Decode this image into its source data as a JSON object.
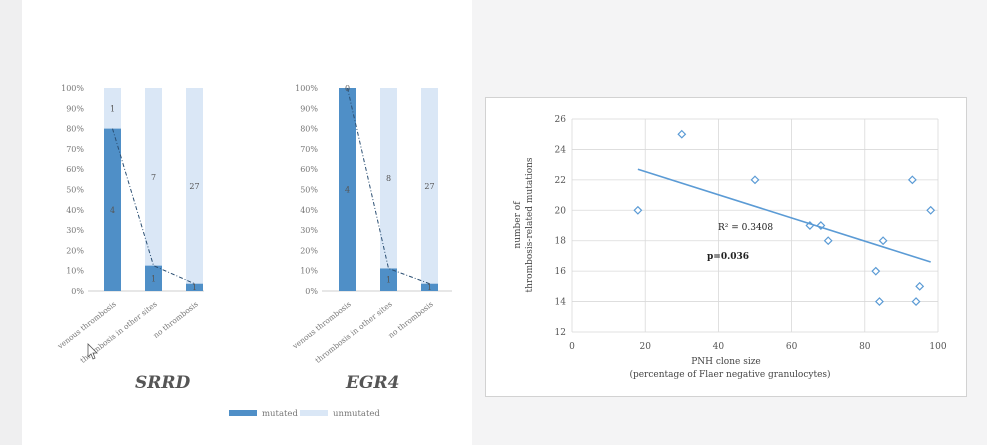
{
  "chart_data": [
    {
      "type": "bar",
      "stacked": true,
      "percent": true,
      "title": "SRRD",
      "categories": [
        "venous thrombosis",
        "thrombosis in other sites",
        "no thrombosis"
      ],
      "series": [
        {
          "name": "mutated",
          "color": "#4f8fc7",
          "values": [
            80,
            12.5,
            3.6
          ],
          "labels": [
            "4",
            "1",
            "1"
          ]
        },
        {
          "name": "unmutated",
          "color": "#dae7f6",
          "values": [
            20,
            87.5,
            96.4
          ],
          "labels": [
            "1",
            "7",
            "27"
          ]
        }
      ],
      "ylim": [
        0,
        100
      ],
      "yticks": [
        "0%",
        "10%",
        "20%",
        "30%",
        "40%",
        "50%",
        "60%",
        "70%",
        "80%",
        "90%",
        "100%"
      ],
      "trend": "dashed line through mutated percentages"
    },
    {
      "type": "bar",
      "stacked": true,
      "percent": true,
      "title": "EGR4",
      "categories": [
        "venous thrombosis",
        "thrombosis in other sites",
        "no thrombosis"
      ],
      "series": [
        {
          "name": "mutated",
          "color": "#4f8fc7",
          "values": [
            100,
            11.1,
            3.6
          ],
          "labels": [
            "4",
            "1",
            "1"
          ]
        },
        {
          "name": "unmutated",
          "color": "#dae7f6",
          "values": [
            0,
            88.9,
            96.4
          ],
          "labels": [
            "0",
            "8",
            "27"
          ]
        }
      ],
      "ylim": [
        0,
        100
      ],
      "yticks": [
        "0%",
        "10%",
        "20%",
        "30%",
        "40%",
        "50%",
        "60%",
        "70%",
        "80%",
        "90%",
        "100%"
      ],
      "trend": "dashed line through mutated percentages"
    },
    {
      "type": "scatter",
      "x": [
        18,
        30,
        50,
        65,
        68,
        70,
        83,
        84,
        85,
        93,
        95,
        94,
        98
      ],
      "y": [
        20,
        25,
        22,
        19,
        19,
        18,
        16,
        14,
        18,
        22,
        15,
        14,
        20
      ],
      "xlabel": "PNH clone size",
      "xlabel2": "(percentage of Flaer negative granulocytes)",
      "ylabel": "number of thrombosis-related mutations",
      "xlim": [
        0,
        100
      ],
      "ylim": [
        12,
        26
      ],
      "xticks": [
        "0",
        "20",
        "40",
        "60",
        "80",
        "100"
      ],
      "yticks": [
        "12",
        "14",
        "16",
        "18",
        "20",
        "22",
        "24",
        "26"
      ],
      "trendline": {
        "x": [
          18,
          98
        ],
        "y": [
          22.7,
          16.6
        ]
      },
      "r2_label": "R² = 0.3408",
      "p_label": "p=0.036",
      "grid": true,
      "marker": "hollow-diamond",
      "color": "#5b9bd5"
    }
  ],
  "legend": {
    "items": [
      {
        "label": "mutated",
        "color": "#4f8fc7"
      },
      {
        "label": "unmutated",
        "color": "#dae7f6"
      }
    ]
  },
  "gene_titles": [
    "SRRD",
    "EGR4"
  ]
}
